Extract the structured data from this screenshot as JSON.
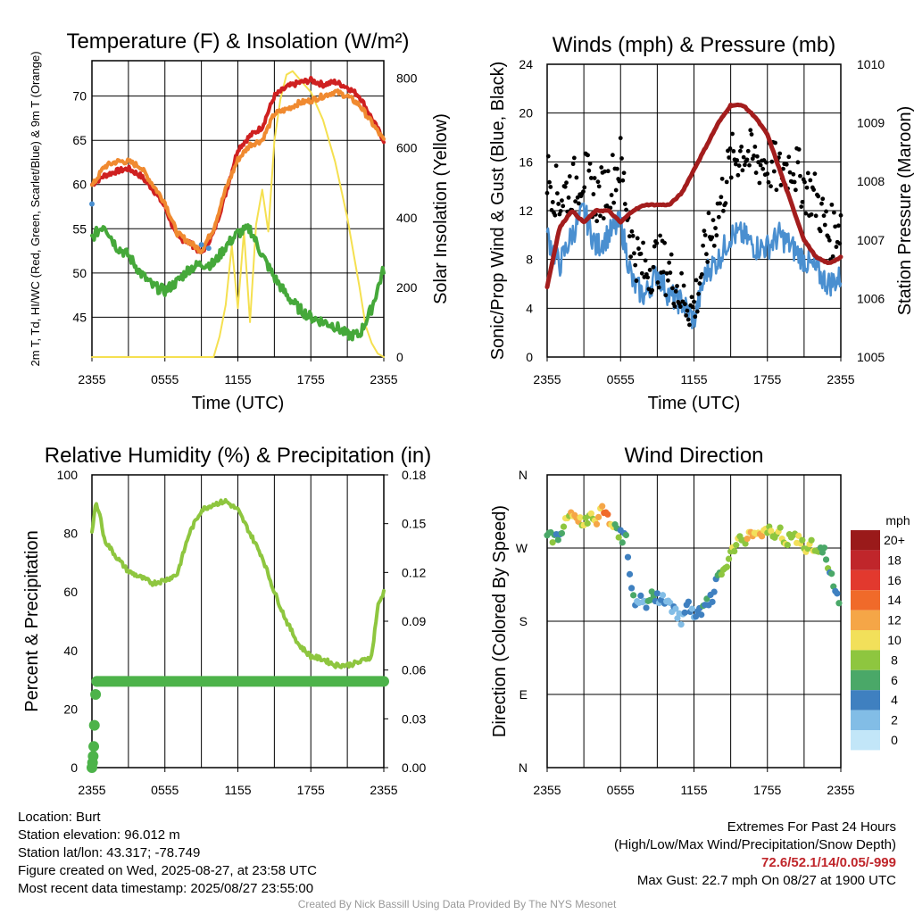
{
  "chart_data": [
    {
      "type": "line",
      "title": "Temperature (F) & Insolation (W/m²)",
      "xlabel": "Time (UTC)",
      "ylabel": "2m T, Td, HI/WC (Red, Green, Scarlet/Blue) & 9m T (Orange)",
      "ylabel_right": "Solar Insolation (Yellow)",
      "x_ticks": [
        "2355",
        "0555",
        "1155",
        "1755",
        "2355"
      ],
      "ylim": [
        40.5,
        74
      ],
      "ylim_right": [
        0,
        850
      ],
      "y_ticks": [
        45,
        50,
        55,
        60,
        65,
        70
      ],
      "y_ticks_right": [
        0,
        200,
        400,
        600,
        800
      ],
      "hours": [
        0,
        1,
        2,
        3,
        4,
        5,
        6,
        7,
        8,
        9,
        10,
        11,
        12,
        13,
        14,
        15,
        16,
        17,
        18,
        19,
        20,
        21,
        22,
        23,
        24
      ],
      "series": [
        {
          "color": "#cf2020",
          "values": [
            60,
            61,
            61.5,
            61.8,
            61,
            59.5,
            57.5,
            54,
            53.5,
            52.2,
            54.5,
            59,
            64,
            65.5,
            66.5,
            70,
            71,
            71.5,
            71.8,
            71.3,
            71.6,
            71,
            70,
            67.5,
            65
          ]
        },
        {
          "color": "#f08a30",
          "values": [
            59.8,
            62,
            62.6,
            62.6,
            62,
            60,
            58,
            54.5,
            53.5,
            52.5,
            55,
            59.5,
            62.8,
            64.5,
            65,
            68,
            68.5,
            69.2,
            69.5,
            70,
            70.5,
            70,
            69,
            67,
            65
          ]
        },
        {
          "color": "#45a83a",
          "values": [
            54,
            55.5,
            53,
            52,
            50,
            48.5,
            48,
            49,
            50.5,
            51,
            51,
            53,
            54.5,
            55,
            52,
            49.5,
            47.5,
            46,
            45,
            44.5,
            44,
            43,
            43,
            46,
            50.5
          ]
        },
        {
          "color": "#4a8fd0",
          "values": [
            57.8,
            null,
            null,
            null,
            null,
            null,
            null,
            null,
            null,
            53.2,
            52.8,
            null,
            null,
            null,
            null,
            null,
            null,
            null,
            null,
            null,
            null,
            null,
            null,
            null,
            null
          ]
        }
      ],
      "insolation_hours": [
        0,
        10,
        10.5,
        11,
        11.5,
        12,
        12.5,
        13,
        13.5,
        14,
        14.5,
        15,
        15.5,
        16,
        16.5,
        17,
        17.5,
        18,
        18.5,
        19,
        19.5,
        20,
        20.5,
        21,
        21.5,
        22,
        22.5,
        23,
        23.5,
        24
      ],
      "insolation": [
        0,
        0,
        60,
        150,
        320,
        140,
        360,
        100,
        380,
        480,
        360,
        620,
        740,
        810,
        820,
        800,
        780,
        760,
        720,
        680,
        620,
        560,
        480,
        400,
        300,
        200,
        90,
        40,
        10,
        0
      ],
      "insolation_color": "#f5e050"
    },
    {
      "type": "line",
      "title": "Winds (mph) & Pressure (mb)",
      "xlabel": "Time (UTC)",
      "ylabel": "Sonic/Prop Wind & Gust (Blue, Black)",
      "ylabel_right": "Station Pressure (Maroon)",
      "x_ticks": [
        "2355",
        "0555",
        "1155",
        "1755",
        "2355"
      ],
      "ylim": [
        0,
        24
      ],
      "ylim_right": [
        1005,
        1010
      ],
      "y_ticks": [
        0,
        4,
        8,
        12,
        16,
        20,
        24
      ],
      "y_ticks_right": [
        1005,
        1006,
        1007,
        1008,
        1009,
        1010
      ],
      "hours": [
        0,
        1,
        2,
        3,
        4,
        5,
        6,
        7,
        8,
        9,
        10,
        11,
        12,
        13,
        14,
        15,
        16,
        17,
        18,
        19,
        20,
        21,
        22,
        23,
        24
      ],
      "wind": [
        10,
        7.5,
        10,
        12,
        9,
        10,
        11,
        6,
        5,
        7,
        5,
        4.5,
        3,
        7,
        8,
        10,
        10,
        9,
        9,
        10,
        9,
        8,
        7,
        6,
        6.5
      ],
      "gust": [
        15,
        13,
        14,
        15,
        13,
        14,
        16,
        9,
        7,
        8,
        7,
        5,
        4,
        9,
        12,
        16,
        17,
        16,
        16,
        15,
        16,
        14,
        13,
        10,
        11
      ],
      "pressure": [
        1006.2,
        1007.2,
        1007.5,
        1007.3,
        1007.5,
        1007.5,
        1007.3,
        1007.5,
        1007.6,
        1007.6,
        1007.6,
        1007.8,
        1008.2,
        1008.6,
        1009.0,
        1009.3,
        1009.3,
        1009.1,
        1008.8,
        1008.2,
        1007.6,
        1007.0,
        1006.7,
        1006.6,
        1006.7
      ],
      "wind_color": "#4a8fd0",
      "gust_color": "#000000",
      "pressure_color": "#a31d1d"
    },
    {
      "type": "line",
      "title": "Relative Humidity (%) & Precipitation (in)",
      "xlabel": "",
      "ylabel": "Percent & Precipitation",
      "x_ticks": [
        "2355",
        "0555",
        "1155",
        "1755",
        "2355"
      ],
      "ylim": [
        0,
        100
      ],
      "ylim_right": [
        0,
        0.18
      ],
      "y_ticks": [
        0,
        20,
        40,
        60,
        80,
        100
      ],
      "y_ticks_right": [
        "0.00",
        "0.03",
        "0.06",
        "0.09",
        "0.12",
        "0.15",
        "0.18"
      ],
      "hours": [
        0,
        0.3,
        0.6,
        1,
        2,
        3,
        4,
        5,
        6,
        7,
        8,
        9,
        10,
        11,
        12,
        13,
        14,
        15,
        16,
        17,
        18,
        19,
        20,
        21,
        22,
        23,
        23.5,
        24
      ],
      "rh": [
        80,
        90,
        88,
        78,
        72,
        67,
        65,
        63,
        64,
        66,
        80,
        88,
        90,
        91,
        88,
        80,
        72,
        60,
        50,
        42,
        38,
        37,
        35,
        35,
        36,
        38,
        55,
        60
      ],
      "rh_color": "#8ec63f",
      "precip_hours": [
        0,
        0.05,
        0.1,
        0.15,
        0.2,
        0.3,
        0.4,
        24
      ],
      "precip": [
        0.0,
        0.003,
        0.007,
        0.013,
        0.026,
        0.045,
        0.053,
        0.053
      ],
      "precip_color": "#4db34a"
    },
    {
      "type": "scatter",
      "title": "Wind Direction",
      "xlabel": "",
      "ylabel": "Direction (Colored By Speed)",
      "x_ticks": [
        "2355",
        "0555",
        "1155",
        "1755",
        "2355"
      ],
      "y_ticks": [
        "N",
        "E",
        "S",
        "W",
        "N"
      ],
      "ylim": [
        0,
        360
      ],
      "legend_title": "mph",
      "legend_labels": [
        "20+",
        "18",
        "16",
        "14",
        "12",
        "10",
        "8",
        "6",
        "4",
        "2",
        "0"
      ],
      "legend_colors": [
        "#9a1a1a",
        "#c0262b",
        "#e2392e",
        "#f06a2a",
        "#f5a647",
        "#f2e05a",
        "#8ec63f",
        "#4aa868",
        "#3f80c0",
        "#82bde6",
        "#c2e6f8"
      ],
      "hours": [
        0,
        0.5,
        1,
        1.5,
        2,
        2.5,
        3,
        3.5,
        4,
        4.5,
        5,
        5.5,
        6,
        6.5,
        7,
        7.5,
        8,
        8.5,
        9,
        9.5,
        10,
        10.5,
        11,
        11.5,
        12,
        12.5,
        13,
        13.5,
        14,
        14.5,
        15,
        15.5,
        16,
        16.5,
        17,
        17.5,
        18,
        18.5,
        19,
        19.5,
        20,
        20.5,
        21,
        21.5,
        22,
        22.5,
        23,
        23.5,
        24
      ],
      "direction": [
        290,
        280,
        285,
        300,
        315,
        305,
        300,
        310,
        305,
        315,
        305,
        300,
        285,
        280,
        205,
        208,
        200,
        210,
        210,
        205,
        200,
        195,
        180,
        200,
        185,
        190,
        200,
        210,
        235,
        245,
        260,
        275,
        280,
        285,
        290,
        285,
        295,
        280,
        290,
        275,
        285,
        280,
        270,
        275,
        265,
        270,
        250,
        215,
        205
      ],
      "speed": [
        8,
        6,
        4,
        8,
        10,
        12,
        8,
        9,
        10,
        12,
        14,
        8,
        6,
        4,
        4,
        3,
        4,
        6,
        4,
        3,
        2,
        3,
        2,
        4,
        3,
        4,
        6,
        4,
        6,
        7,
        8,
        9,
        8,
        12,
        10,
        11,
        9,
        8,
        10,
        9,
        8,
        10,
        8,
        9,
        8,
        6,
        6,
        4,
        6
      ]
    }
  ],
  "info_left": [
    "Location: Burt",
    "Station elevation: 96.012 m",
    "Station lat/lon: 43.317; -78.749",
    "Figure created on Wed, 2025-08-27, at 23:58 UTC",
    "Most recent data timestamp: 2025/08/27 23:55:00"
  ],
  "extremes_title": "Extremes For Past 24 Hours",
  "extremes_subtitle": "(High/Low/Max Wind/Precipitation/Snow Depth)",
  "extremes_values": "72.6/52.1/14/0.05/-999",
  "max_gust": "Max Gust: 22.7 mph On 08/27 at 1900 UTC",
  "credit": "Created By Nick Bassill Using Data Provided By The NYS Mesonet"
}
